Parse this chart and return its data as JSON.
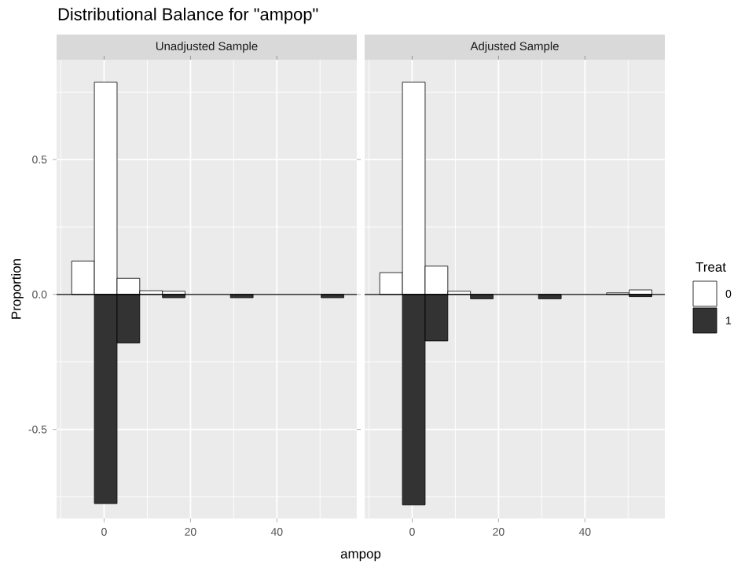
{
  "chart_data": [
    {
      "type": "histogram",
      "title": "Distributional Balance for \"ampop\"",
      "subtitle": "Unadjusted Sample",
      "xlabel": "ampop",
      "ylabel": "Proportion",
      "bins": [
        -7.5,
        -2.25,
        3,
        8.25,
        13.5,
        18.75,
        24,
        29.25,
        34.5,
        39.75,
        45,
        50.25,
        55.5
      ],
      "series": [
        {
          "color": "#ffffff",
          "values": [
            0.124,
            0.787,
            0.06,
            0.014,
            0.012,
            null,
            null,
            null,
            null,
            null,
            null,
            null
          ]
        },
        {
          "color": "#333333",
          "values": [
            null,
            -0.775,
            -0.18,
            null,
            -0.012,
            null,
            null,
            -0.012,
            null,
            null,
            null,
            -0.012
          ]
        }
      ],
      "xlim": [
        -11,
        58.5
      ],
      "ylim": [
        -0.83,
        0.87
      ],
      "xticks": [
        0,
        20,
        40
      ],
      "yticks": [
        {
          "value": -0.5,
          "label": "-0.5"
        },
        {
          "value": 0,
          "label": "0.0"
        },
        {
          "value": 0.5,
          "label": "0.5"
        }
      ],
      "grid": true,
      "ref_lines": [
        {
          "axis": "y",
          "value": 0
        }
      ]
    },
    {
      "type": "histogram",
      "subtitle": "Adjusted Sample",
      "legend_title": "Treat",
      "legend": "right",
      "bins": [
        -7.5,
        -2.25,
        3,
        8.25,
        13.5,
        18.75,
        24,
        29.25,
        34.5,
        39.75,
        45,
        50.25,
        55.5
      ],
      "series": [
        {
          "name": "0",
          "color": "#ffffff",
          "values": [
            0.081,
            0.787,
            0.105,
            0.012,
            null,
            null,
            null,
            null,
            null,
            null,
            0.006,
            0.017
          ]
        },
        {
          "name": "1",
          "color": "#333333",
          "values": [
            null,
            -0.78,
            -0.172,
            null,
            -0.016,
            null,
            null,
            -0.016,
            null,
            null,
            null,
            -0.008
          ]
        }
      ],
      "xlim": [
        -11,
        58.5
      ],
      "ylim": [
        -0.83,
        0.87
      ],
      "xticks": [
        0,
        20,
        40
      ],
      "yticks": [
        -0.5,
        0,
        0.5
      ],
      "grid": true,
      "tick_labels": "x",
      "ref_lines": [
        {
          "axis": "y",
          "value": 0
        }
      ]
    }
  ]
}
